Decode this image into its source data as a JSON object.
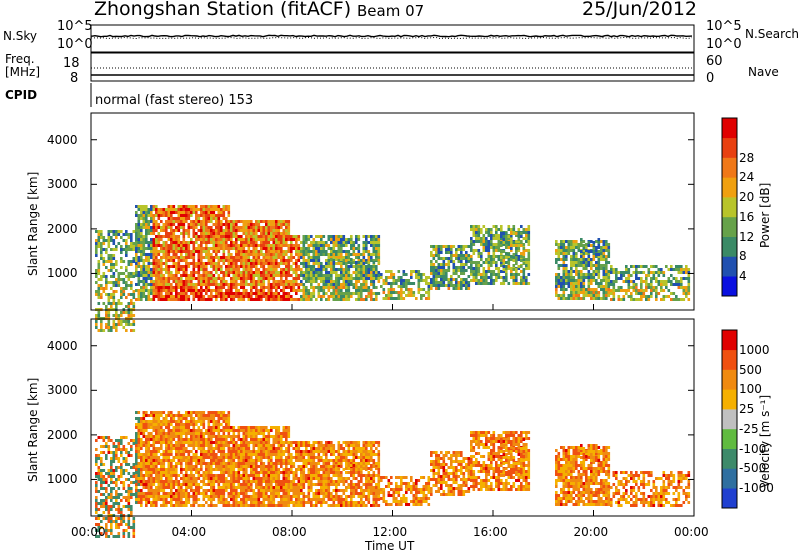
{
  "header": {
    "station": "Zhongshan Station (fitACF)",
    "beam": "Beam 07",
    "date": "25/Jun/2012"
  },
  "noise_panel": {
    "left_label": "N.Sky",
    "right_label": "N.Search",
    "left_ticks": [
      "10^5",
      "10^0"
    ],
    "right_ticks": [
      "10^5",
      "10^0"
    ]
  },
  "freq_panel": {
    "left_label_1": "Freq.",
    "left_label_2": "[MHz]",
    "right_label": "Nave",
    "left_ticks": [
      "18",
      "8"
    ],
    "right_ticks": [
      "60",
      "0"
    ]
  },
  "cpid": {
    "label": "CPID",
    "text": "normal (fast stereo) 153"
  },
  "chart_data": [
    {
      "type": "heatmap",
      "quantity": "power",
      "ylabel": "Slant Range [km]",
      "yticks": [
        1000,
        2000,
        3000,
        4000
      ],
      "colorbar": {
        "label": "Power [dB]",
        "ticks": [
          "4",
          "8",
          "12",
          "16",
          "20",
          "24",
          "28"
        ],
        "colors": [
          "#0a10e0",
          "#2050b0",
          "#3a8a66",
          "#66a24a",
          "#b8c42a",
          "#f0a010",
          "#f07818",
          "#e84010",
          "#e00000"
        ]
      }
    },
    {
      "type": "heatmap",
      "quantity": "velocity",
      "ylabel": "Slant Range [km]",
      "yticks": [
        1000,
        2000,
        3000,
        4000
      ],
      "colorbar": {
        "label": "Velocity [m s⁻¹]",
        "ticks": [
          "1000",
          "500",
          "100",
          "25",
          "-25",
          "-100",
          "-500",
          "-1000"
        ],
        "colors": [
          "#2040d0",
          "#2f6fa0",
          "#3d8a6a",
          "#60bb40",
          "#c0c0c0",
          "#f5b000",
          "#f08a10",
          "#f05010",
          "#e00000"
        ]
      }
    }
  ],
  "x_axis": {
    "label": "Time UT",
    "ticks": [
      "00:00",
      "04:00",
      "08:00",
      "12:00",
      "16:00",
      "20:00",
      "00:00"
    ]
  }
}
